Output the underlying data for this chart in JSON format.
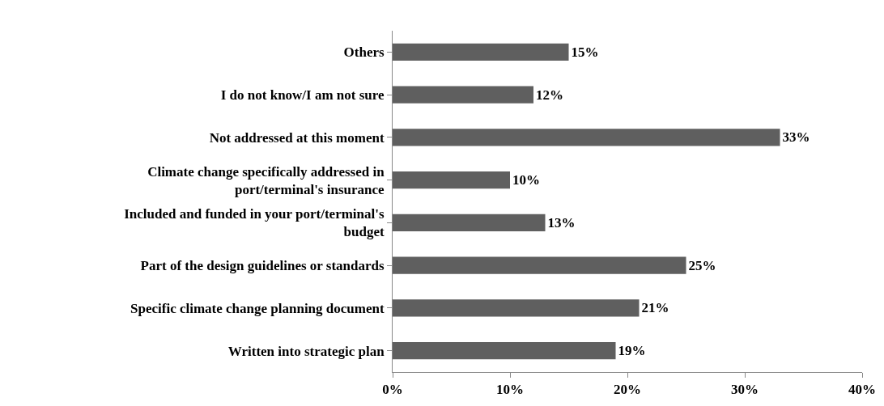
{
  "chart_data": {
    "type": "bar",
    "orientation": "horizontal",
    "categories": [
      "Others",
      "I do not know/I am not sure",
      "Not addressed at this moment",
      "Climate change specifically addressed in\nport/terminal's insurance",
      "Included and funded in your port/terminal's\nbudget",
      "Part of the design guidelines or standards",
      "Specific climate change planning document",
      "Written into strategic plan"
    ],
    "values": [
      15,
      12,
      33,
      10,
      13,
      25,
      21,
      19
    ],
    "value_labels": [
      "15%",
      "12%",
      "33%",
      "10%",
      "13%",
      "25%",
      "21%",
      "19%"
    ],
    "color": "#5f5f5f",
    "xlim": [
      0,
      40
    ],
    "xticks": [
      {
        "value": 0,
        "label": "0%"
      },
      {
        "value": 10,
        "label": "10%"
      },
      {
        "value": 20,
        "label": "20%"
      },
      {
        "value": 30,
        "label": "30%"
      },
      {
        "value": 40,
        "label": "40%"
      }
    ],
    "grid": false
  }
}
